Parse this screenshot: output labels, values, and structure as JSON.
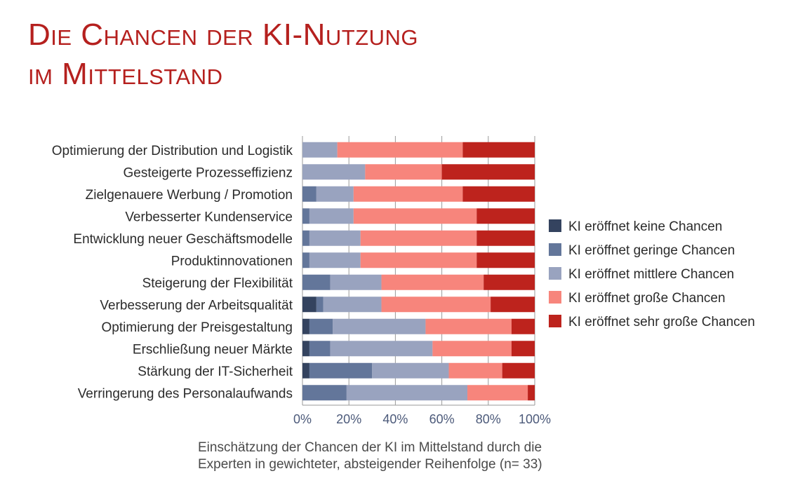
{
  "title_lines": [
    "Die Chancen der KI-Nutzung",
    "im Mittelstand"
  ],
  "caption_lines": [
    "Einschätzung der Chancen der KI im Mittelstand durch die",
    "Experten in gewichteter, absteigender Reihenfolge  (n= 33)"
  ],
  "colors": {
    "keine": "#34435f",
    "geringe": "#63769a",
    "mittlere": "#99a3bf",
    "grosse": "#f7857c",
    "sehr_grosse": "#bd231d",
    "grid": "#9a9a9a",
    "title": "#b5201e"
  },
  "chart_data": {
    "type": "bar",
    "orientation": "horizontal",
    "stacked": true,
    "title": "",
    "xlabel": "",
    "ylabel": "",
    "xlim": [
      0,
      100
    ],
    "x_ticks": [
      "0%",
      "20%",
      "40%",
      "60%",
      "80%",
      "100%"
    ],
    "grid": "vertical",
    "legend_position": "right",
    "categories": [
      "Optimierung der Distribution und Logistik",
      "Gesteigerte Prozesseffizienz",
      "Zielgenauere Werbung / Promotion",
      "Verbesserter Kundenservice",
      "Entwicklung neuer Geschäftsmodelle",
      "Produktinnovationen",
      "Steigerung der Flexibilität",
      "Verbesserung der Arbeitsqualität",
      "Optimierung der Preisgestaltung",
      "Erschließung neuer Märkte",
      "Stärkung der IT-Sicherheit",
      "Verringerung des Personalaufwands"
    ],
    "series": [
      {
        "name": "KI eröffnet keine Chancen",
        "color_key": "keine",
        "values": [
          0,
          0,
          0,
          0,
          0,
          0,
          0,
          6,
          3,
          3,
          3,
          0
        ]
      },
      {
        "name": "KI eröffnet geringe Chancen",
        "color_key": "geringe",
        "values": [
          0,
          0,
          6,
          3,
          3,
          3,
          12,
          3,
          10,
          9,
          27,
          19
        ]
      },
      {
        "name": "KI eröffnet mittlere Chancen",
        "color_key": "mittlere",
        "values": [
          15,
          27,
          16,
          19,
          22,
          22,
          22,
          25,
          40,
          44,
          33,
          52
        ]
      },
      {
        "name": "KI eröffnet große Chancen",
        "color_key": "grosse",
        "values": [
          54,
          33,
          47,
          53,
          50,
          50,
          44,
          47,
          37,
          34,
          23,
          26
        ]
      },
      {
        "name": "KI eröffnet sehr große Chancen",
        "color_key": "sehr_grosse",
        "values": [
          31,
          40,
          31,
          25,
          25,
          25,
          22,
          19,
          10,
          10,
          14,
          3
        ]
      }
    ]
  }
}
